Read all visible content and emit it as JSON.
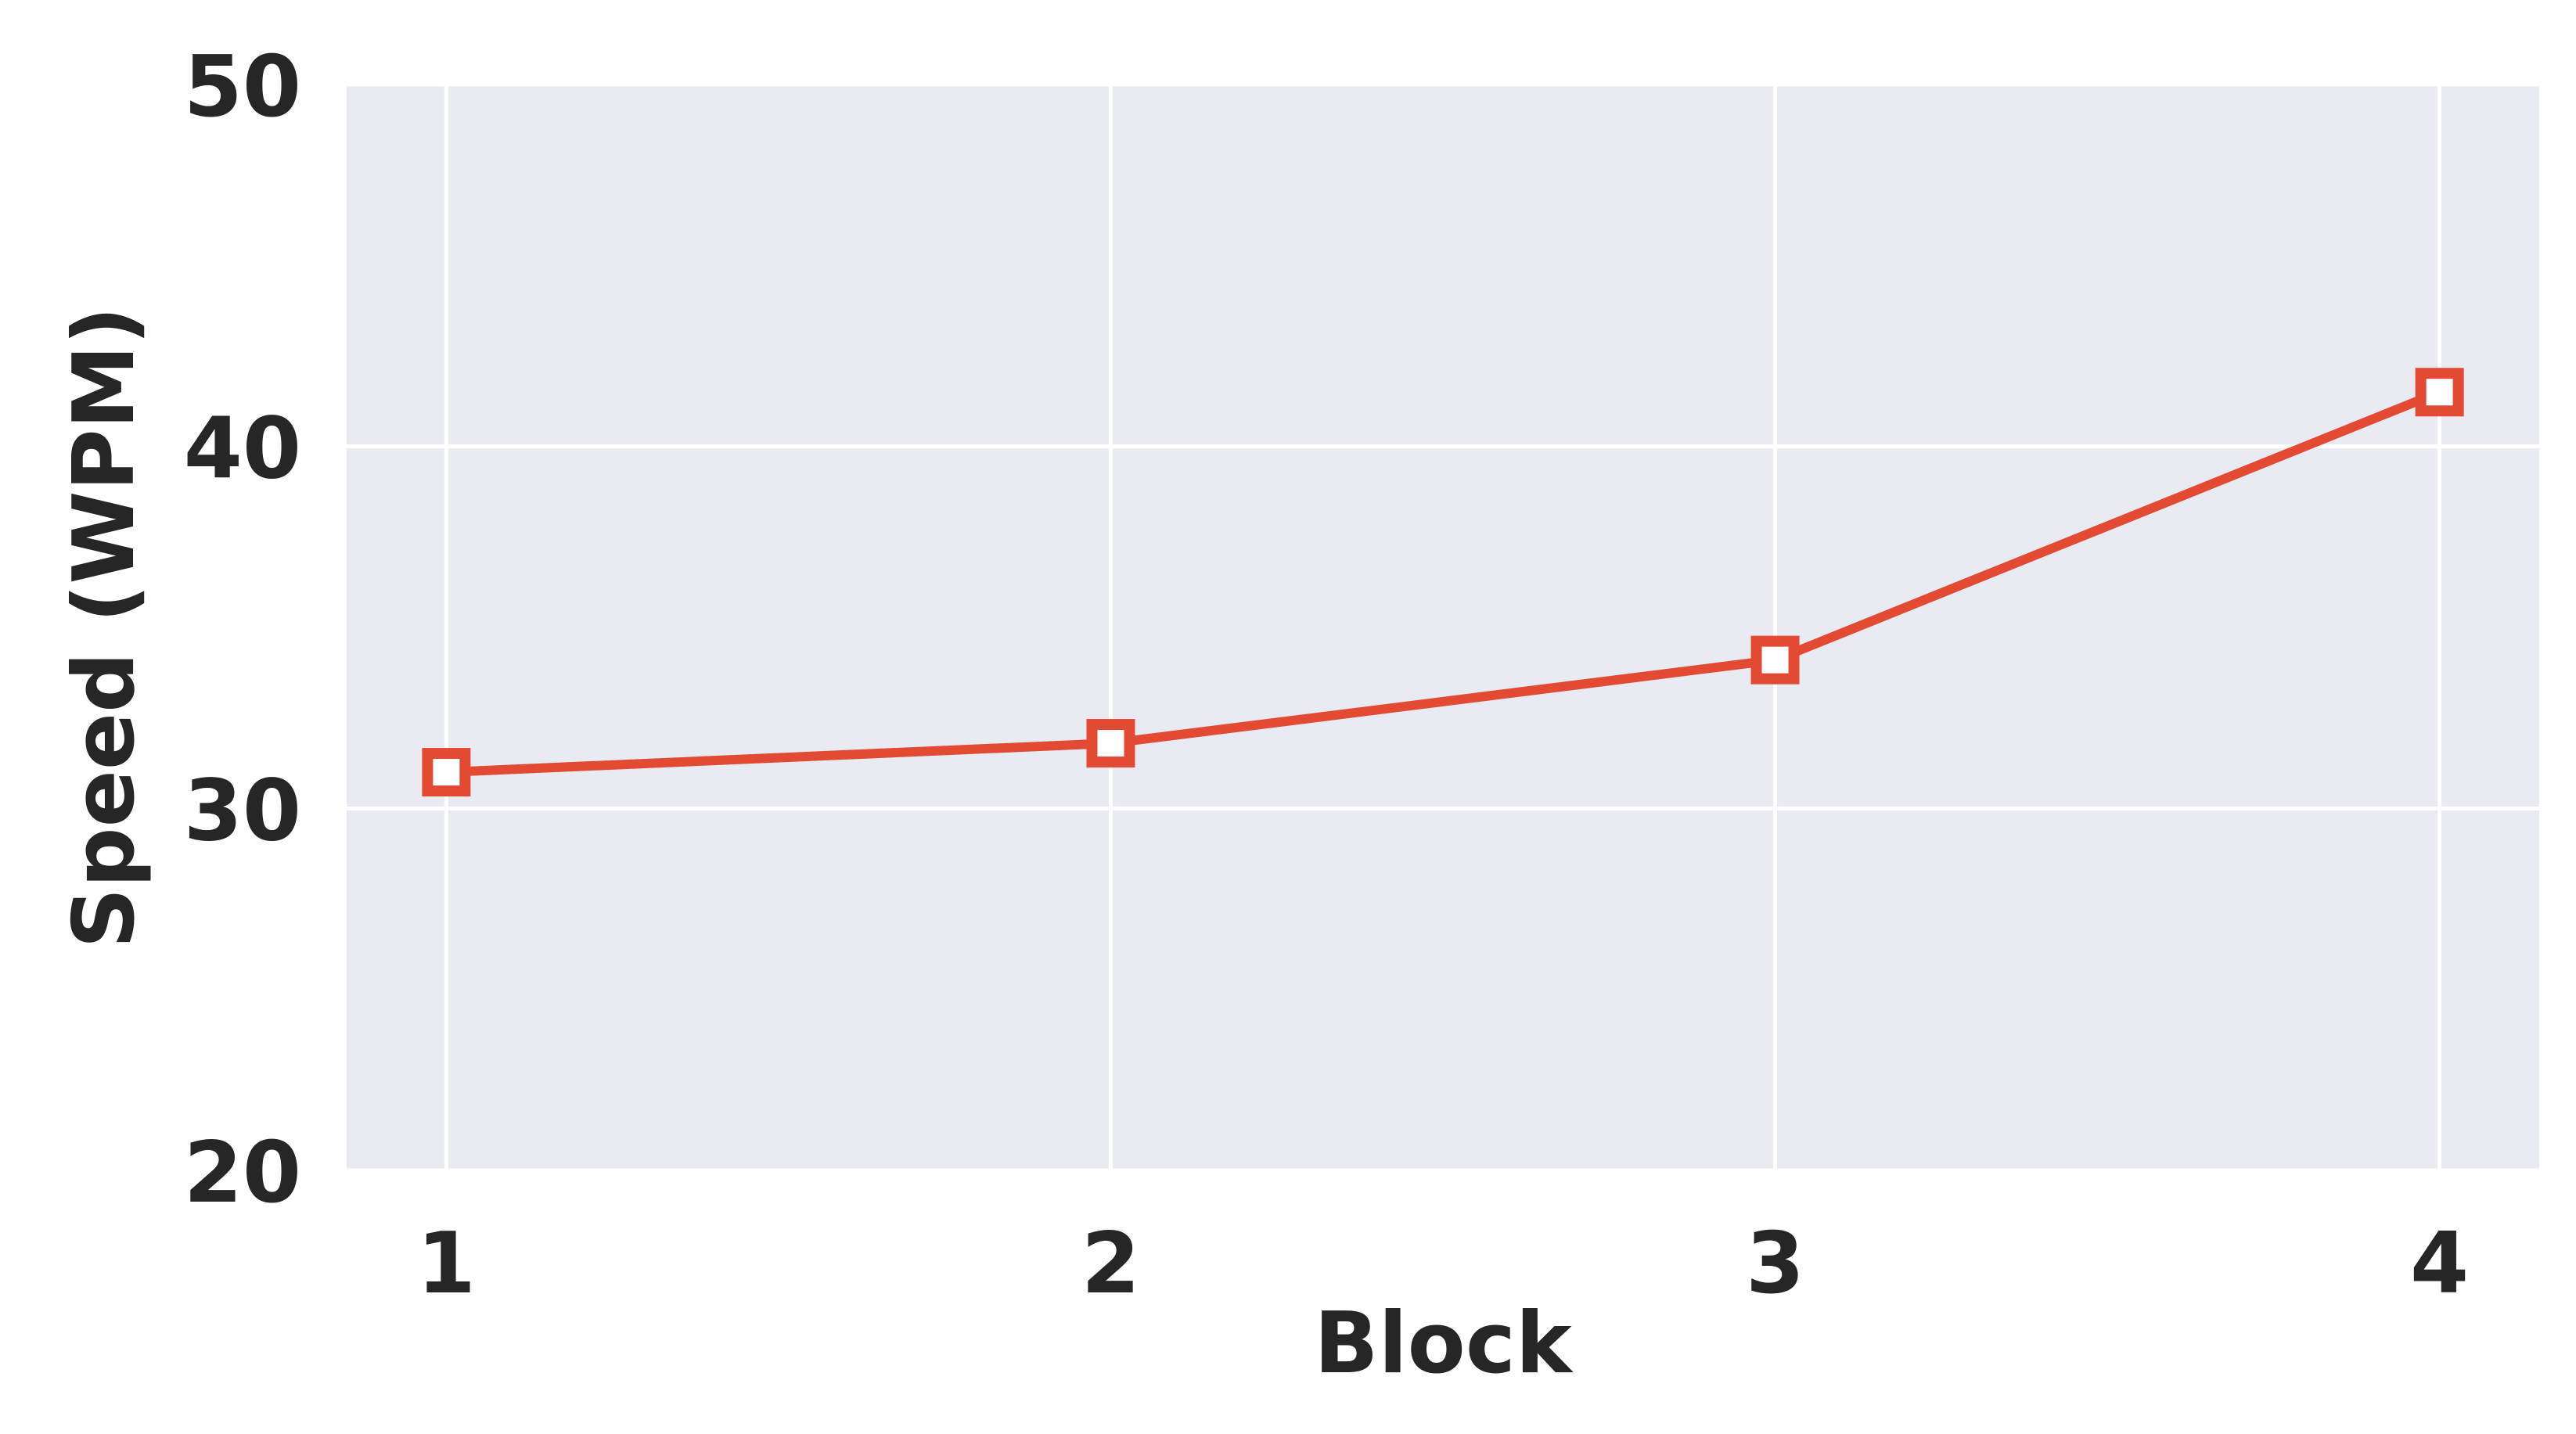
{
  "chart_data": {
    "type": "line",
    "title": "",
    "xlabel": "Block",
    "ylabel": "Speed (WPM)",
    "x": [
      1,
      2,
      3,
      4
    ],
    "x_tick_labels": [
      "1",
      "2",
      "3",
      "4"
    ],
    "y_ticks": [
      20,
      30,
      40,
      50
    ],
    "y_tick_labels": [
      "20",
      "30",
      "40",
      "50"
    ],
    "xlim": [
      0.85,
      4.15
    ],
    "ylim": [
      20,
      50
    ],
    "grid": true,
    "legend": "none",
    "series": [
      {
        "values": [
          31.0,
          31.8,
          34.1,
          41.5
        ],
        "color": "#e24a33",
        "marker": "hollow-square"
      }
    ],
    "colors": {
      "plot_background": "#eaeaf2",
      "grid": "#ffffff",
      "text": "#262626"
    }
  }
}
